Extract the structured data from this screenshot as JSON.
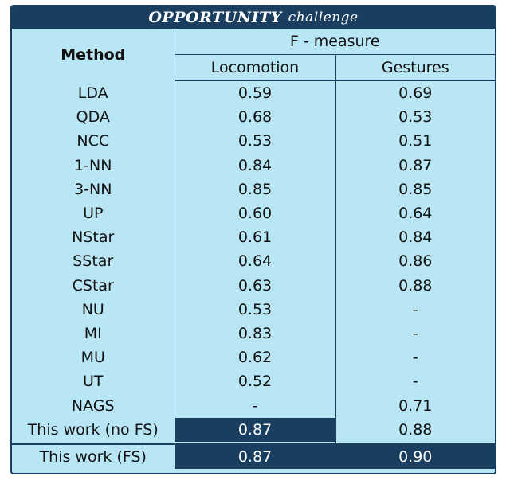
{
  "title": {
    "main": "OPPORTUNITY",
    "sub": "challenge"
  },
  "header": {
    "method": "Method",
    "group": "F - measure",
    "locomotion": "Locomotion",
    "gestures": "Gestures"
  },
  "rows": [
    {
      "method": "LDA",
      "locomotion": "0.59",
      "gestures": "0.69"
    },
    {
      "method": "QDA",
      "locomotion": "0.68",
      "gestures": "0.53"
    },
    {
      "method": "NCC",
      "locomotion": "0.53",
      "gestures": "0.51"
    },
    {
      "method": "1-NN",
      "locomotion": "0.84",
      "gestures": "0.87"
    },
    {
      "method": "3-NN",
      "locomotion": "0.85",
      "gestures": "0.85"
    },
    {
      "method": "UP",
      "locomotion": "0.60",
      "gestures": "0.64"
    },
    {
      "method": "NStar",
      "locomotion": "0.61",
      "gestures": "0.84"
    },
    {
      "method": "SStar",
      "locomotion": "0.64",
      "gestures": "0.86"
    },
    {
      "method": "CStar",
      "locomotion": "0.63",
      "gestures": "0.88"
    },
    {
      "method": "NU",
      "locomotion": "0.53",
      "gestures": "-"
    },
    {
      "method": "MI",
      "locomotion": "0.83",
      "gestures": "-"
    },
    {
      "method": "MU",
      "locomotion": "0.62",
      "gestures": "-"
    },
    {
      "method": "UT",
      "locomotion": "0.52",
      "gestures": "-"
    },
    {
      "method": "NAGS",
      "locomotion": "-",
      "gestures": "0.71"
    },
    {
      "method": "This work (no FS)",
      "locomotion": "0.87",
      "gestures": "0.88",
      "highlight_locomotion": true
    }
  ],
  "final_row": {
    "method": "This work (FS)",
    "locomotion": "0.87",
    "gestures": "0.90"
  },
  "colors": {
    "accent": "#1a3e60",
    "background": "#b8e6f5"
  }
}
